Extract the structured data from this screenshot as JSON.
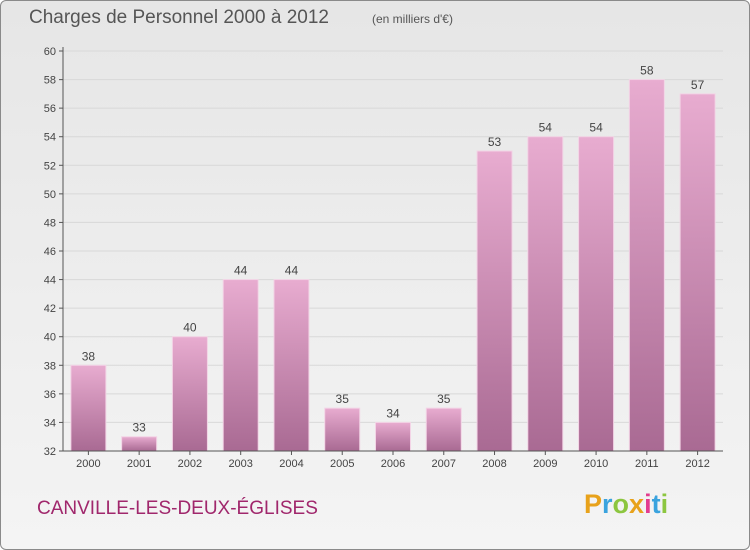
{
  "header": {
    "title": "Charges de Personnel 2000 à 2012",
    "subtitle": "(en milliers d'€)"
  },
  "footer": {
    "commune": "CANVILLE-LES-DEUX-ÉGLISES",
    "brand": "Proxiti",
    "brand_colors": [
      "#e8a21b",
      "#3aa3de",
      "#8cc63f",
      "#e8a21b",
      "#e33c8f",
      "#3aa3de",
      "#8cc63f"
    ]
  },
  "colors": {
    "bar_top": "#e8acd0",
    "bar_bottom": "#a96a93",
    "axis": "#555555",
    "grid": "#d8d8d8"
  },
  "chart_data": {
    "type": "bar",
    "title": "Charges de Personnel 2000 à 2012",
    "subtitle": "(en milliers d'€)",
    "categories": [
      "2000",
      "2001",
      "2002",
      "2003",
      "2004",
      "2005",
      "2006",
      "2007",
      "2008",
      "2009",
      "2010",
      "2011",
      "2012"
    ],
    "values": [
      38,
      33,
      40,
      44,
      44,
      35,
      34,
      35,
      53,
      54,
      54,
      58,
      57
    ],
    "ylim": [
      32,
      60
    ],
    "yticks": [
      32,
      34,
      36,
      38,
      40,
      42,
      44,
      46,
      48,
      50,
      52,
      54,
      56,
      58,
      60
    ],
    "grid": true,
    "xlabel": "",
    "ylabel": ""
  }
}
